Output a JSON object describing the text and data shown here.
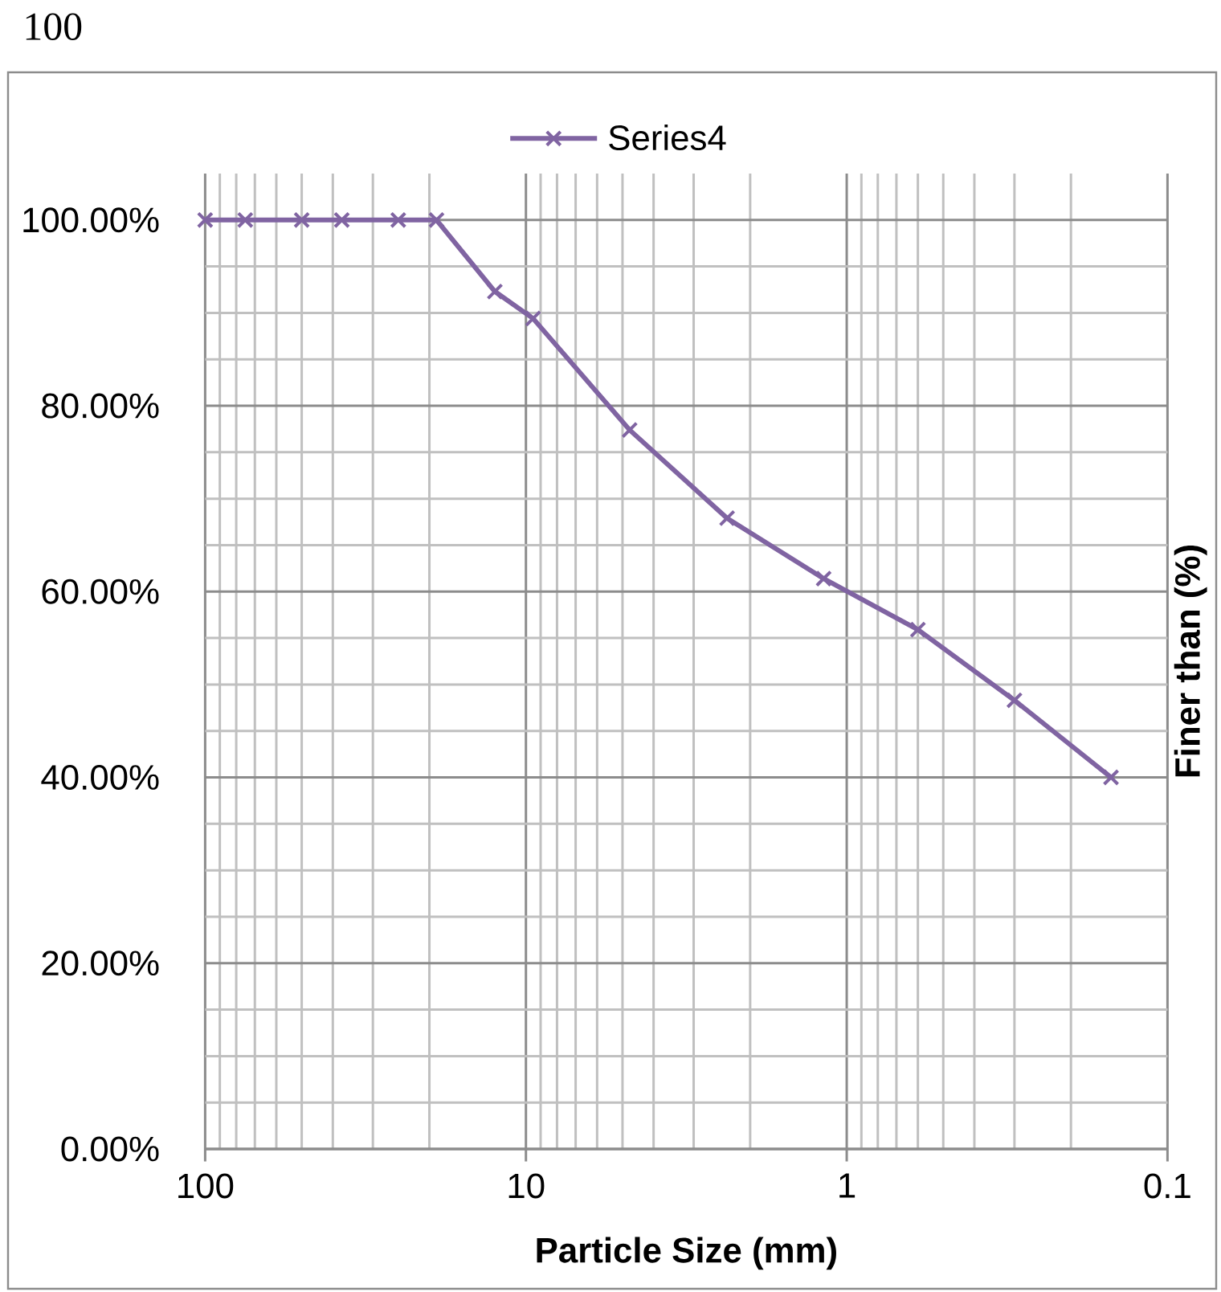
{
  "chart_data": {
    "type": "line",
    "xlabel": "Particle Size (mm)",
    "ylabel": "Finer than (%)",
    "annotations": [
      "100"
    ],
    "x": [
      100,
      75,
      50,
      37.5,
      25,
      19,
      12.5,
      9.5,
      4.75,
      2.36,
      1.18,
      0.6,
      0.3,
      0.15
    ],
    "series": [
      {
        "name": "Series4",
        "color": "#8064a2",
        "values": [
          100,
          100,
          100,
          100,
          100,
          100,
          92.3,
          89.4,
          77.4,
          67.9,
          61.4,
          55.9,
          48.3,
          40.0
        ]
      }
    ],
    "xlim": [
      100,
      0.1
    ],
    "xticks": [
      100,
      10,
      1,
      0.1
    ],
    "ylim": [
      0,
      105
    ],
    "yticks": [
      {
        "value": 0,
        "label": "0.00%"
      },
      {
        "value": 20,
        "label": "20.00%"
      },
      {
        "value": 40,
        "label": "40.00%"
      },
      {
        "value": 60,
        "label": "60.00%"
      },
      {
        "value": 80,
        "label": "80.00%"
      },
      {
        "value": 100,
        "label": "100.00%"
      }
    ],
    "log": "x",
    "grid": true,
    "legend": "top",
    "marker": "cross",
    "line_style": "solid"
  }
}
